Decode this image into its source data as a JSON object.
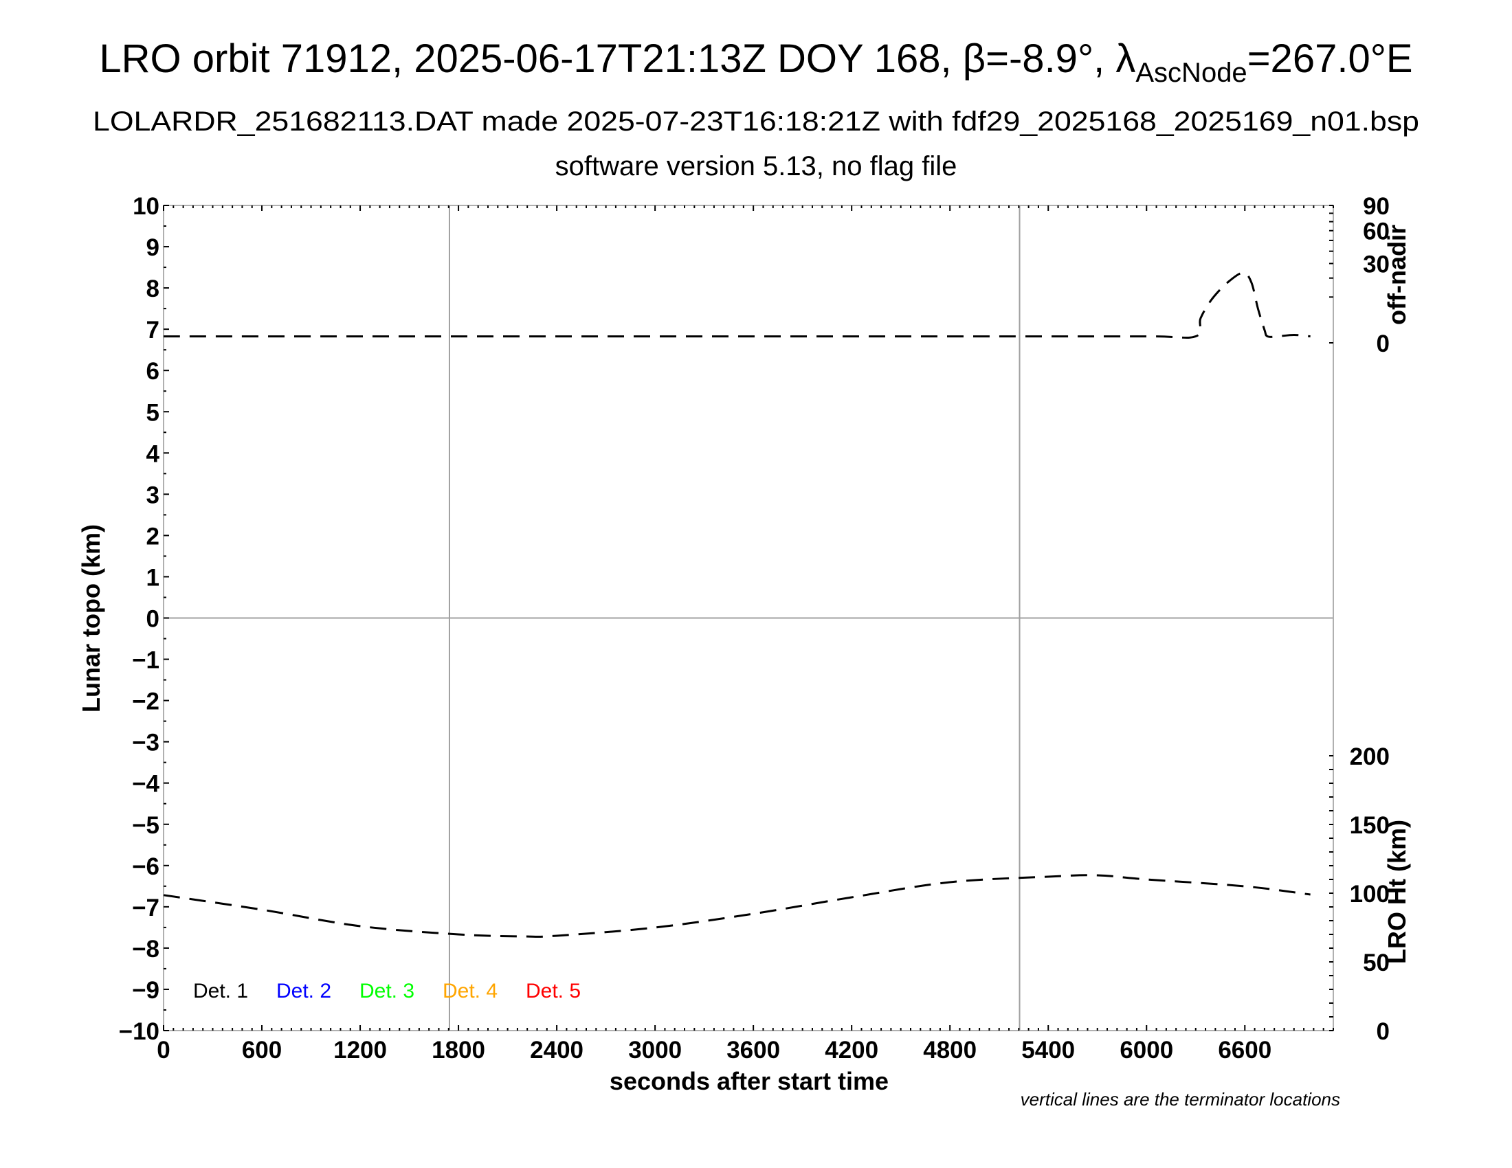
{
  "chart_data": {
    "type": "line",
    "title": "LRO orbit 71912, 2025-06-17T21:13Z DOY 168, β=-8.9°, λ",
    "title_subscript": "AscNode",
    "title_suffix": "=267.0°E",
    "subtitle": "LOLARDR_251682113.DAT made 2025-07-23T16:18:21Z with fdf29_2025168_2025169_n01.bsp",
    "subtitle2": "software version 5.13, no flag file",
    "xlabel": "seconds after start time",
    "xlim": [
      0,
      7140
    ],
    "xticks": [
      "0",
      "600",
      "1200",
      "1800",
      "2400",
      "3000",
      "3600",
      "4200",
      "4800",
      "5400",
      "6000",
      "6600"
    ],
    "ylabel_left": "Lunar topo (km)",
    "ylim_left": [
      -10,
      10
    ],
    "yticks_left": [
      "10",
      "9",
      "8",
      "7",
      "6",
      "5",
      "4",
      "3",
      "2",
      "1",
      "0",
      "−1",
      "−2",
      "−3",
      "−4",
      "−5",
      "−6",
      "−7",
      "−8",
      "−9",
      "−10"
    ],
    "ylabel_right_top": "off-nadir",
    "right_top_scale": "sqrt",
    "ylim_right_top": [
      0,
      90
    ],
    "yticks_right_top": [
      "0",
      "30",
      "60",
      "90"
    ],
    "ylabel_right_bottom": "LRO Ht (km)",
    "ylim_right_bottom": [
      0,
      200
    ],
    "yticks_right_bottom": [
      "0",
      "50",
      "100",
      "150",
      "200"
    ],
    "terminator_lines_s": [
      1745,
      5225
    ],
    "note": "vertical lines are the terminator locations",
    "legend": [
      {
        "label": "Det. 1",
        "color": "#000000"
      },
      {
        "label": "Det. 2",
        "color": "#0000ff"
      },
      {
        "label": "Det. 3",
        "color": "#00ff00"
      },
      {
        "label": "Det. 4",
        "color": "#ffa500"
      },
      {
        "label": "Det. 5",
        "color": "#ff0000"
      }
    ],
    "legend_placement": "bottom-left",
    "series": [
      {
        "axis": "off-nadir",
        "style": "dashed",
        "color": "#000000",
        "x": [
          0,
          1000,
          2000,
          3000,
          4000,
          5000,
          6000,
          6300,
          6330,
          6400,
          6500,
          6590,
          6640,
          6680,
          6720,
          6738,
          6800,
          6900,
          7000
        ],
        "y": [
          0.2,
          0.2,
          0.2,
          0.2,
          0.2,
          0.2,
          0.2,
          0.2,
          2.9,
          9.2,
          17.8,
          23.4,
          17.4,
          5.6,
          0.8,
          0.2,
          0.2,
          0.3,
          0.2
        ]
      },
      {
        "axis": "LRO Ht",
        "style": "dashed",
        "color": "#000000",
        "x": [
          0,
          600,
          1200,
          1800,
          2200,
          2400,
          3000,
          3600,
          4200,
          4800,
          5400,
          5700,
          6000,
          6600,
          7000
        ],
        "y": [
          98.6,
          88,
          76,
          70,
          68.5,
          69,
          75,
          85,
          97,
          108,
          112,
          113,
          110,
          105,
          99
        ]
      }
    ]
  }
}
